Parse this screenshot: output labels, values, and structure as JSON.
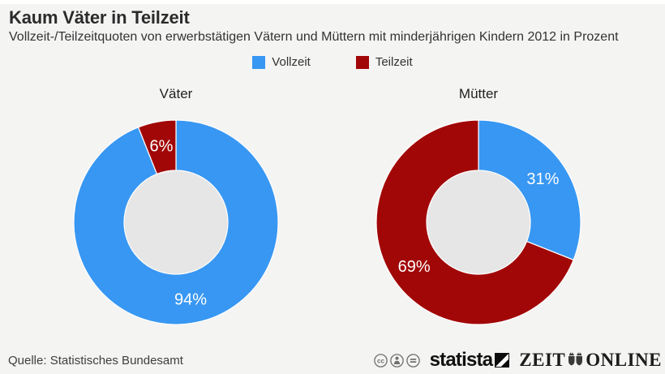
{
  "header": {
    "title": "Kaum Väter in Teilzeit",
    "subtitle": "Vollzeit-/Teilzeitquoten von erwerbstätigen Vätern und Müttern mit minderjährigen Kindern 2012 in Prozent"
  },
  "chart_data": {
    "type": "pie",
    "donut": true,
    "title": "Kaum Väter in Teilzeit",
    "subtitle": "Vollzeit-/Teilzeitquoten von erwerbstätigen Vätern und Müttern mit minderjährigen Kindern 2012 in Prozent",
    "unit": "percent",
    "legend_position": "top",
    "legend": [
      {
        "label": "Vollzeit",
        "color": "#3897f2"
      },
      {
        "label": "Teilzeit",
        "color": "#a20707"
      }
    ],
    "hole_color": "#e6e6e6",
    "label_color": "#ffffff",
    "start_angle_deg": 0,
    "charts": [
      {
        "title": "Väter",
        "slices": [
          {
            "label": "Vollzeit",
            "value": 94,
            "display": "94%",
            "color": "#3897f2"
          },
          {
            "label": "Teilzeit",
            "value": 6,
            "display": "6%",
            "color": "#a20707"
          }
        ]
      },
      {
        "title": "Mütter",
        "slices": [
          {
            "label": "Vollzeit",
            "value": 31,
            "display": "31%",
            "color": "#3897f2"
          },
          {
            "label": "Teilzeit",
            "value": 69,
            "display": "69%",
            "color": "#a20707"
          }
        ]
      }
    ]
  },
  "footer": {
    "source": "Quelle: Statistisches Bundesamt",
    "license_icons": [
      "cc-icon",
      "attribution-icon",
      "no-derivatives-icon"
    ],
    "logos": {
      "statista_label": "statista",
      "zeit_label": "ZEIT",
      "online_label": "ONLINE"
    }
  },
  "colors": {
    "background": "#f4f4f3",
    "vollzeit_blue": "#3897f2",
    "teilzeit_red": "#a20707",
    "donut_hole": "#e6e6e6",
    "text_dark": "#2b2b2b"
  }
}
